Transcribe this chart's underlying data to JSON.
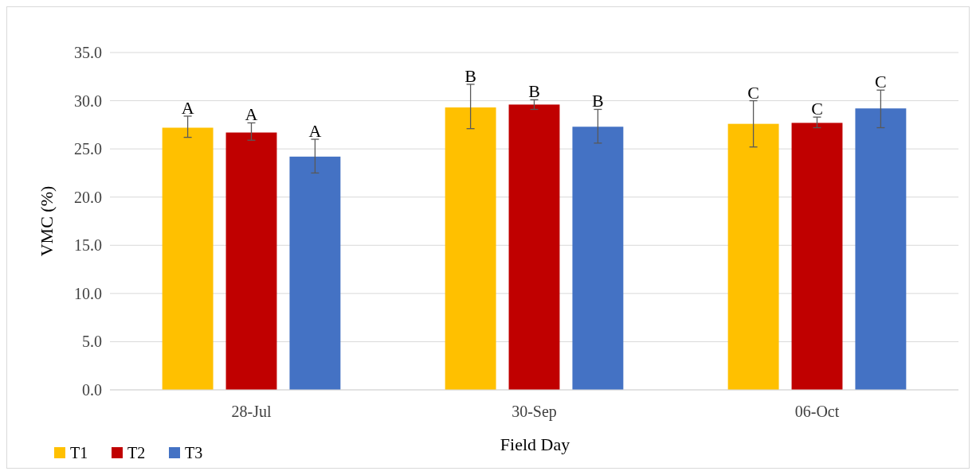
{
  "chart_data": {
    "type": "bar",
    "xlabel": "Field Day",
    "ylabel": "VMC (%)",
    "categories": [
      "28-Jul",
      "30-Sep",
      "06-Oct"
    ],
    "series": [
      {
        "name": "T1",
        "color": "#ffc000",
        "values": [
          27.2,
          29.3,
          27.6
        ],
        "errors": [
          [
            26.2,
            28.4
          ],
          [
            27.1,
            31.7
          ],
          [
            25.2,
            30.0
          ]
        ]
      },
      {
        "name": "T2",
        "color": "#c00000",
        "values": [
          26.7,
          29.6,
          27.7
        ],
        "errors": [
          [
            25.9,
            27.7
          ],
          [
            29.1,
            30.1
          ],
          [
            27.2,
            28.3
          ]
        ]
      },
      {
        "name": "T3",
        "color": "#4472c4",
        "values": [
          24.2,
          27.3,
          29.2
        ],
        "errors": [
          [
            22.5,
            26.0
          ],
          [
            25.6,
            29.1
          ],
          [
            27.2,
            31.1
          ]
        ]
      }
    ],
    "annotations": [
      "A",
      "A",
      "A",
      "B",
      "B",
      "B",
      "C",
      "C",
      "C"
    ],
    "ylim": [
      0,
      35
    ],
    "yticks": [
      {
        "value": 0,
        "label": "0.0"
      },
      {
        "value": 5,
        "label": "5.0"
      },
      {
        "value": 10,
        "label": "10.0"
      },
      {
        "value": 15,
        "label": "15.0"
      },
      {
        "value": 20,
        "label": "20.0"
      },
      {
        "value": 25,
        "label": "25.0"
      },
      {
        "value": 30,
        "label": "30.0"
      },
      {
        "value": 35,
        "label": "35.0"
      }
    ],
    "grid": "y",
    "legend": "bottom left"
  }
}
